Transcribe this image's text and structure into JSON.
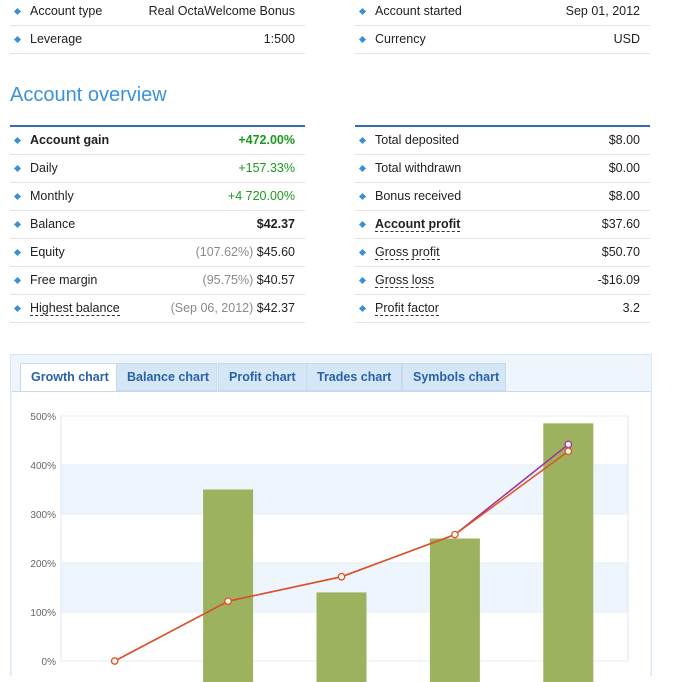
{
  "top_left": [
    {
      "label": "Account type",
      "value": "Real OctaWelcome Bonus"
    },
    {
      "label": "Leverage",
      "value": "1:500"
    }
  ],
  "top_right": [
    {
      "label": "Account started",
      "value": "Sep 01, 2012"
    },
    {
      "label": "Currency",
      "value": "USD"
    }
  ],
  "overview_title": "Account overview",
  "overview_left": [
    {
      "label": "Account gain",
      "value": "+472.00%"
    },
    {
      "label": "Daily",
      "value": "+157.33%"
    },
    {
      "label": "Monthly",
      "value": "+4 720.00%"
    },
    {
      "label": "Balance",
      "value": "$42.37"
    },
    {
      "label": "Equity",
      "note": "(107.62%)",
      "value": "$45.60"
    },
    {
      "label": "Free margin",
      "note": "(95.75%)",
      "value": "$40.57"
    },
    {
      "label": "Highest balance",
      "note": "(Sep 06, 2012)",
      "value": "$42.37"
    }
  ],
  "overview_right": [
    {
      "label": "Total deposited",
      "value": "$8.00"
    },
    {
      "label": "Total withdrawn",
      "value": "$0.00"
    },
    {
      "label": "Bonus received",
      "value": "$8.00"
    },
    {
      "label": "Account profit",
      "value": "$37.60"
    },
    {
      "label": "Gross profit",
      "value": "$50.70"
    },
    {
      "label": "Gross loss",
      "value": "-$16.09"
    },
    {
      "label": "Profit factor",
      "value": "3.2"
    }
  ],
  "tabs": [
    {
      "label": "Growth chart"
    },
    {
      "label": "Balance chart"
    },
    {
      "label": "Profit chart"
    },
    {
      "label": "Trades chart"
    },
    {
      "label": "Symbols chart"
    }
  ],
  "colors": {
    "accent": "#3b92d9",
    "tab_text": "#2763a6",
    "bar": "#9db25e",
    "line_a": "#e0531d",
    "line_b": "#a0309b",
    "positive": "#1d9a1d"
  },
  "chart_data": {
    "type": "bar",
    "yticks": [
      "500%",
      "400%",
      "300%",
      "200%",
      "100%",
      "0%"
    ],
    "ylim": [
      0,
      500
    ],
    "bars": [
      350,
      140,
      250,
      485
    ],
    "growth_line": [
      0,
      122,
      172,
      258,
      428
    ],
    "equity_line": [
      0,
      122,
      172,
      258,
      442
    ]
  }
}
